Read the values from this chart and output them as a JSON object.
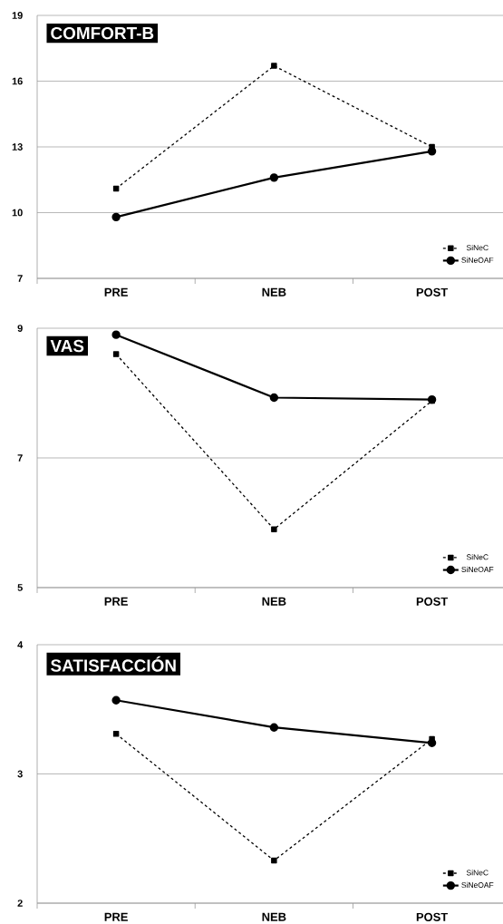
{
  "chart_data": [
    {
      "type": "line",
      "title": "COMFORT-B",
      "categories": [
        "PRE",
        "NEB",
        "POST"
      ],
      "series": [
        {
          "name": "SiNeC",
          "color": "#000000",
          "line_style": "dashed",
          "marker": "square",
          "values": [
            11.1,
            16.7,
            13.0
          ]
        },
        {
          "name": "SiNeOAF",
          "color": "#000000",
          "line_style": "solid",
          "marker": "circle",
          "values": [
            9.8,
            11.6,
            12.8
          ]
        }
      ],
      "ylim": [
        7,
        19
      ],
      "yticks": [
        7,
        10,
        13,
        16,
        19
      ],
      "grid": "y",
      "legend": "bottom right"
    },
    {
      "type": "line",
      "title": "VAS",
      "categories": [
        "PRE",
        "NEB",
        "POST"
      ],
      "series": [
        {
          "name": "SiNeC",
          "color": "#000000",
          "line_style": "dashed",
          "marker": "square",
          "values": [
            8.6,
            5.9,
            7.88
          ]
        },
        {
          "name": "SiNeOAF",
          "color": "#000000",
          "line_style": "solid",
          "marker": "circle",
          "values": [
            8.9,
            7.93,
            7.9
          ]
        }
      ],
      "ylim": [
        5,
        9
      ],
      "yticks": [
        5,
        7,
        9
      ],
      "grid": "y",
      "legend": "bottom right"
    },
    {
      "type": "line",
      "title": "SATISFACCIÓN",
      "categories": [
        "PRE",
        "NEB",
        "POST"
      ],
      "series": [
        {
          "name": "SiNeC",
          "color": "#000000",
          "line_style": "dashed",
          "marker": "square",
          "values": [
            3.31,
            2.33,
            3.27
          ]
        },
        {
          "name": "SiNeOAF",
          "color": "#000000",
          "line_style": "solid",
          "marker": "circle",
          "values": [
            3.57,
            3.36,
            3.24
          ]
        }
      ],
      "ylim": [
        2,
        4
      ],
      "yticks": [
        2,
        3,
        4
      ],
      "grid": "y",
      "legend": "bottom right"
    }
  ]
}
